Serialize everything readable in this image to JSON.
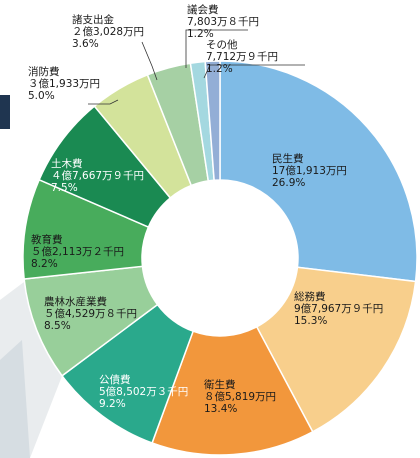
{
  "chart_data": {
    "type": "pie",
    "donut": true,
    "slices": [
      {
        "name": "民生費",
        "amount": "17億1,913万円",
        "percent": 26.9,
        "percent_label": "26.9%",
        "color": "#7fbbe6"
      },
      {
        "name": "総務費",
        "amount": "9億7,967万９千円",
        "percent": 15.3,
        "percent_label": "15.3%",
        "color": "#f8cf8c"
      },
      {
        "name": "衛生費",
        "amount": "８億5,819万円",
        "percent": 13.4,
        "percent_label": "13.4%",
        "color": "#f2973c"
      },
      {
        "name": "公債費",
        "amount": "5億8,502万３千円",
        "percent": 9.2,
        "percent_label": "9.2%",
        "color": "#2aa98c"
      },
      {
        "name": "農林水産業費",
        "amount": "５億4,529万８千円",
        "percent": 8.5,
        "percent_label": "8.5%",
        "color": "#98cf9a"
      },
      {
        "name": "教育費",
        "amount": "５億2,113万２千円",
        "percent": 8.2,
        "percent_label": "8.2%",
        "color": "#48ac5c"
      },
      {
        "name": "土木費",
        "amount": "４億7,667万９千円",
        "percent": 7.5,
        "percent_label": "7.5%",
        "color": "#1a8a52"
      },
      {
        "name": "消防費",
        "amount": "３億1,933万円",
        "percent": 5.0,
        "percent_label": "5.0%",
        "color": "#d3e39b"
      },
      {
        "name": "諸支出金",
        "amount": "２億3,028万円",
        "percent": 3.6,
        "percent_label": "3.6%",
        "color": "#a6d0a4"
      },
      {
        "name": "議会費",
        "amount": "7,803万８千円",
        "percent": 1.2,
        "percent_label": "1.2%",
        "color": "#a4d8e0"
      },
      {
        "name": "その他",
        "amount": "7,712万９千円",
        "percent": 1.2,
        "percent_label": "1.2%",
        "color": "#93aed6"
      }
    ]
  }
}
